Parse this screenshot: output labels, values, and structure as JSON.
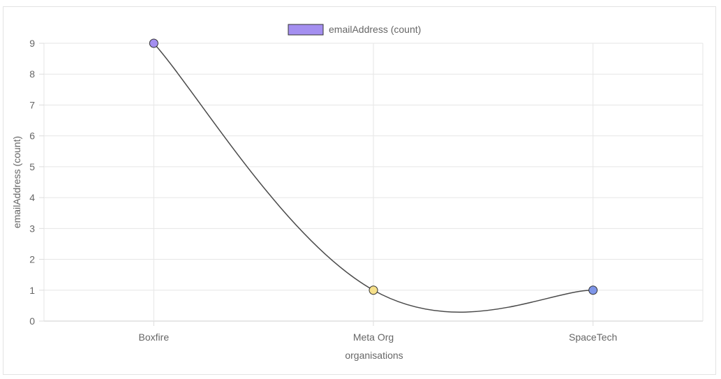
{
  "chart_data": {
    "type": "line",
    "categories": [
      "Boxfire",
      "Meta Org",
      "SpaceTech"
    ],
    "series": [
      {
        "name": "emailAddress (count)",
        "values": [
          9,
          1,
          1
        ],
        "point_colors": [
          "#a48ff0",
          "#f6e08a",
          "#7e95e8"
        ],
        "line_color": "#4a4a4a"
      }
    ],
    "legend": {
      "position": "top",
      "swatch_color": "#a48ff0"
    },
    "xlabel": "organisations",
    "ylabel": "emailAddress (count)",
    "ylim": [
      0,
      9
    ],
    "yticks": [
      "0",
      "1",
      "2",
      "3",
      "4",
      "5",
      "6",
      "7",
      "8",
      "9"
    ],
    "grid": true
  }
}
